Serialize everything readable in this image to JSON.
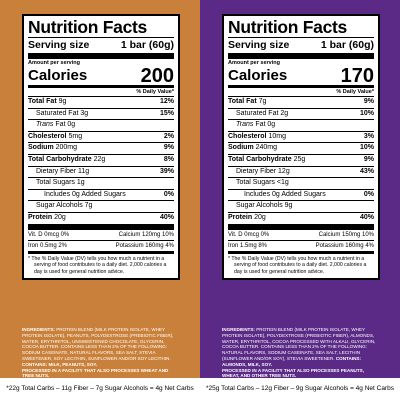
{
  "panels": [
    {
      "title": "Nutrition Facts",
      "serving_label": "Serving size",
      "serving_value": "1 bar (60g)",
      "amount_per_serving": "Amount per serving",
      "calories_label": "Calories",
      "calories_value": "200",
      "dv_header": "% Daily Value*",
      "rows": [
        {
          "label": "Total Fat",
          "amount": "9g",
          "dv": "12%"
        },
        {
          "label": "Saturated Fat",
          "amount": "3g",
          "dv": "15%"
        },
        {
          "label": "Trans",
          "amount": "Fat 0g",
          "dv": ""
        },
        {
          "label": "Cholesterol",
          "amount": "5mg",
          "dv": "2%"
        },
        {
          "label": "Sodium",
          "amount": "200mg",
          "dv": "9%"
        },
        {
          "label": "Total Carbohydrate",
          "amount": "22g",
          "dv": "8%"
        },
        {
          "label": "Dietary Fiber",
          "amount": "11g",
          "dv": "39%"
        },
        {
          "label": "Total Sugars",
          "amount": "1g",
          "dv": ""
        },
        {
          "label": "Includes 0g Added Sugars",
          "amount": "",
          "dv": "0%"
        },
        {
          "label": "Sugar Alcohols",
          "amount": "7g",
          "dv": ""
        },
        {
          "label": "Protein",
          "amount": "20g",
          "dv": "40%"
        }
      ],
      "vitamins": [
        {
          "left": "Vit. D 0mcg 0%",
          "right": "Calcium 120mg 10%"
        },
        {
          "left": "Iron 0.5mg 2%",
          "right": "Potassium 160mg 4%"
        }
      ],
      "footnote": "* The % Daily Value (DV) tells you how much a nutrient in a serving of food contributes to a daily diet. 2,000 calories a day is used for general nutrition advice.",
      "ingredients_label": "INGREDIENTS:",
      "ingredients": "PROTEIN BLEND (MILK PROTEIN ISOLATE, WHEY PROTEIN ISOLATE), PEANUTS, POLYDEXTROSE (PREBIOTIC FIBER), WATER, ERYTHRITOL, UNSWEETENED CHOCOLATE, GLYCERIN, COCOA BUTTER. CONTAINS LESS THAN 2% OF THE FOLLOWING: SODIUM CASEINATE, NATURAL FLAVORS, SEA SALT, STEVIA SWEETENER, SOY LECITHIN, SUNFLOWER AND/OR SOY LECITHIN.",
      "contains_label": "CONTAINS:",
      "contains": "MILK, PEANUTS, SOY.",
      "facility": "PROCESSED IN A FACILITY THAT ALSO PROCESSES WHEAT AND TREE NUTS.",
      "bioengineered": "CONTAINS A BIOENGINEERED FOOD INGREDIENT.",
      "carbs_note": "*22g Total Carbs – 11g Fiber – 7g Sugar Alcohols = 4g Net Carbs"
    },
    {
      "title": "Nutrition Facts",
      "serving_label": "Serving size",
      "serving_value": "1 bar (60g)",
      "amount_per_serving": "Amount per serving",
      "calories_label": "Calories",
      "calories_value": "170",
      "dv_header": "% Daily Value*",
      "rows": [
        {
          "label": "Total Fat",
          "amount": "7g",
          "dv": "9%"
        },
        {
          "label": "Saturated Fat",
          "amount": "2g",
          "dv": "10%"
        },
        {
          "label": "Trans",
          "amount": "Fat 0g",
          "dv": ""
        },
        {
          "label": "Cholesterol",
          "amount": "10mg",
          "dv": "3%"
        },
        {
          "label": "Sodium",
          "amount": "240mg",
          "dv": "10%"
        },
        {
          "label": "Total Carbohydrate",
          "amount": "25g",
          "dv": "9%"
        },
        {
          "label": "Dietary Fiber",
          "amount": "12g",
          "dv": "43%"
        },
        {
          "label": "Total Sugars",
          "amount": "<1g",
          "dv": ""
        },
        {
          "label": "Includes 0g Added Sugars",
          "amount": "",
          "dv": "0%"
        },
        {
          "label": "Sugar Alcohols",
          "amount": "9g",
          "dv": ""
        },
        {
          "label": "Protein",
          "amount": "20g",
          "dv": "40%"
        }
      ],
      "vitamins": [
        {
          "left": "Vit. D 0mcg 0%",
          "right": "Calcium 150mg 10%"
        },
        {
          "left": "Iron 1.5mg 8%",
          "right": "Potassium 160mg 4%"
        }
      ],
      "footnote": "* The % Daily Value (DV) tells you how much a nutrient in a serving of food contributes to a daily diet. 2,000 calories a day is used for general nutrition advice.",
      "ingredients_label": "INGREDIENTS:",
      "ingredients": "PROTEIN BLEND (MILK PROTEIN ISOLATE, WHEY PROTEIN ISOLATE), POLYDEXTROSE (PREBIOTIC FIBER), ALMONDS, WATER, ERYTHRITOL, COCOA PROCESSED WITH ALKALI, GLYCERIN, COCOA BUTTER. CONTAINS LESS THAN 2% OF THE FOLLOWING: NATURAL FLAVORS, SODIUM CASEINATE, SEA SALT, LECITHIN (SUNFLOWER AND/OR SOY), STEVIA SWEETENER.",
      "contains_label": "CONTAINS:",
      "contains": "ALMONDS, MILK, SOY.",
      "facility": "PROCESSED IN A FACILITY THAT ALSO PROCESSES PEANUTS, WHEAT, AND OTHER TREE NUTS.",
      "bioengineered": "CONTAINS A BIOENGINEERED FOOD INGREDIENT.",
      "carbs_note": "*25g Total Carbs – 12g Fiber – 9g Sugar Alcohols = 4g Net Carbs"
    }
  ],
  "colors": {
    "left_bg": "#c9803a",
    "right_bg": "#5a2a86"
  }
}
